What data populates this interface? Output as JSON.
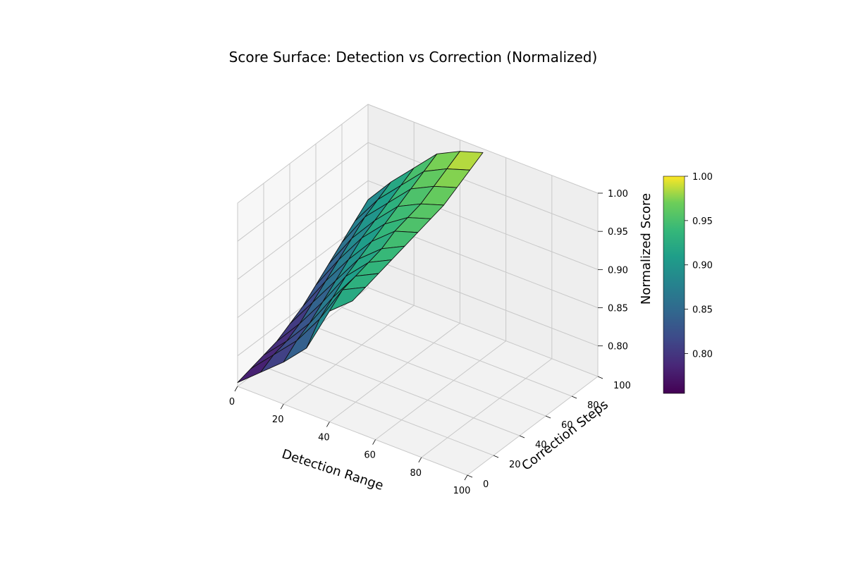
{
  "chart_data": {
    "type": "surface",
    "title": "Score Surface: Detection vs Correction (Normalized)",
    "xlabel": "Detection Range",
    "ylabel": "Correction Steps",
    "zlabel": "Normalized Score",
    "xlim": [
      0,
      100
    ],
    "ylim": [
      0,
      100
    ],
    "zlim": [
      0.76,
      1.0
    ],
    "x_ticks": [
      0,
      20,
      40,
      60,
      80,
      100
    ],
    "y_ticks": [
      0,
      20,
      40,
      60,
      80,
      100
    ],
    "z_ticks": [
      0.8,
      0.85,
      0.9,
      0.95,
      1.0
    ],
    "colormap": "viridis",
    "colorbar": {
      "range": [
        0.755,
        1.0
      ],
      "ticks": [
        0.8,
        0.85,
        0.9,
        0.95,
        1.0
      ]
    },
    "grid": true,
    "surface_rows": [
      {
        "y": 0,
        "x": [
          0,
          10,
          20,
          30,
          40,
          50
        ],
        "z": [
          0.765,
          0.79,
          0.815,
          0.845,
          0.905,
          0.93
        ]
      },
      {
        "y": 10,
        "x": [
          0,
          10,
          20,
          30,
          40,
          50
        ],
        "z": [
          0.77,
          0.8,
          0.83,
          0.87,
          0.92,
          0.935
        ]
      },
      {
        "y": 20,
        "x": [
          0,
          10,
          20,
          30,
          40,
          50
        ],
        "z": [
          0.775,
          0.805,
          0.84,
          0.885,
          0.925,
          0.94
        ]
      },
      {
        "y": 30,
        "x": [
          0,
          10,
          20,
          30,
          40,
          50
        ],
        "z": [
          0.78,
          0.815,
          0.855,
          0.9,
          0.93,
          0.945
        ]
      },
      {
        "y": 40,
        "x": [
          0,
          10,
          20,
          30,
          40,
          50
        ],
        "z": [
          0.79,
          0.83,
          0.87,
          0.91,
          0.935,
          0.95
        ]
      },
      {
        "y": 50,
        "x": [
          0,
          10,
          20,
          30,
          40,
          50
        ],
        "z": [
          0.8,
          0.845,
          0.885,
          0.92,
          0.945,
          0.955
        ]
      },
      {
        "y": 60,
        "x": [
          0,
          10,
          20,
          30,
          40,
          50
        ],
        "z": [
          0.815,
          0.86,
          0.9,
          0.93,
          0.95,
          0.96
        ]
      },
      {
        "y": 70,
        "x": [
          0,
          10,
          20,
          30,
          40,
          50
        ],
        "z": [
          0.83,
          0.875,
          0.91,
          0.94,
          0.955,
          0.965
        ]
      },
      {
        "y": 80,
        "x": [
          0,
          10,
          20,
          30,
          40,
          50
        ],
        "z": [
          0.845,
          0.89,
          0.92,
          0.95,
          0.965,
          0.975
        ]
      },
      {
        "y": 90,
        "x": [
          0,
          10,
          20,
          30,
          40,
          50
        ],
        "z": [
          0.86,
          0.9,
          0.93,
          0.96,
          0.975,
          0.985
        ]
      },
      {
        "y": 100,
        "x": [
          0,
          10,
          20,
          30,
          40,
          50
        ],
        "z": [
          0.875,
          0.91,
          0.94,
          0.97,
          0.985,
          0.995
        ]
      }
    ]
  }
}
